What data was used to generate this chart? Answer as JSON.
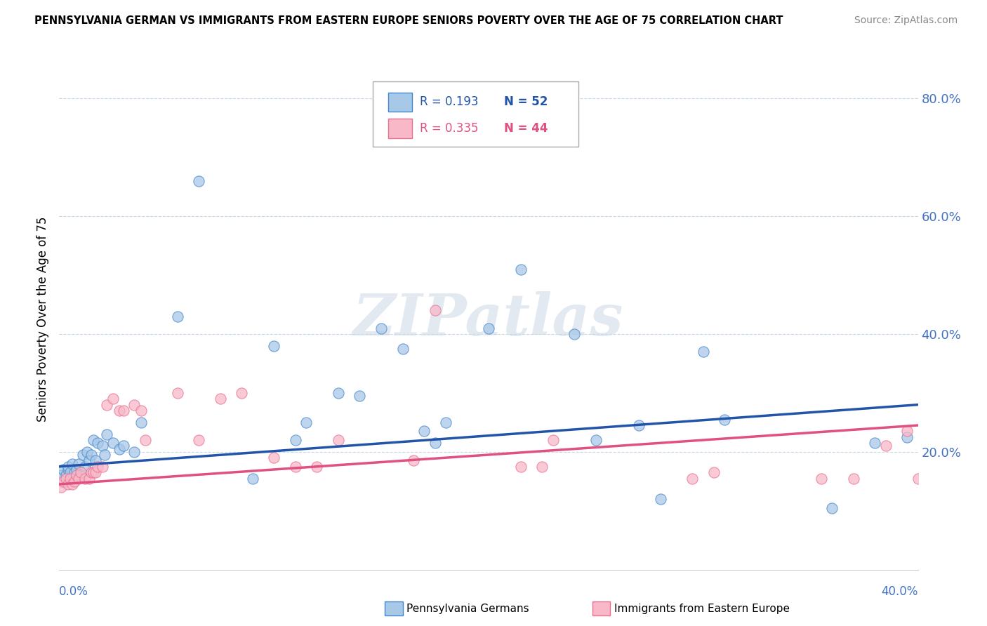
{
  "title": "PENNSYLVANIA GERMAN VS IMMIGRANTS FROM EASTERN EUROPE SENIORS POVERTY OVER THE AGE OF 75 CORRELATION CHART",
  "source": "Source: ZipAtlas.com",
  "xmin": 0.0,
  "xmax": 0.4,
  "ymin": 0.0,
  "ymax": 0.85,
  "legend_r1": "R = 0.193",
  "legend_n1": "N = 52",
  "legend_r2": "R = 0.335",
  "legend_n2": "N = 44",
  "color_blue_fill": "#a8c8e8",
  "color_blue_edge": "#4488cc",
  "color_blue_line": "#2255aa",
  "color_pink_fill": "#f8b8c8",
  "color_pink_edge": "#e87090",
  "color_pink_line": "#e05080",
  "color_ytick": "#4472c4",
  "watermark": "ZIPatlas",
  "blue_trend_start": 0.175,
  "blue_trend_end": 0.28,
  "pink_trend_start": 0.145,
  "pink_trend_end": 0.245,
  "blue_x": [
    0.001,
    0.002,
    0.003,
    0.004,
    0.004,
    0.005,
    0.006,
    0.006,
    0.007,
    0.008,
    0.009,
    0.01,
    0.011,
    0.012,
    0.013,
    0.014,
    0.015,
    0.016,
    0.017,
    0.018,
    0.02,
    0.021,
    0.022,
    0.025,
    0.028,
    0.03,
    0.035,
    0.038,
    0.055,
    0.065,
    0.09,
    0.1,
    0.11,
    0.115,
    0.13,
    0.14,
    0.15,
    0.16,
    0.17,
    0.175,
    0.18,
    0.2,
    0.215,
    0.24,
    0.25,
    0.27,
    0.28,
    0.3,
    0.31,
    0.36,
    0.38,
    0.395
  ],
  "blue_y": [
    0.16,
    0.17,
    0.16,
    0.17,
    0.175,
    0.165,
    0.18,
    0.155,
    0.165,
    0.17,
    0.18,
    0.16,
    0.195,
    0.175,
    0.2,
    0.185,
    0.195,
    0.22,
    0.185,
    0.215,
    0.21,
    0.195,
    0.23,
    0.215,
    0.205,
    0.21,
    0.2,
    0.25,
    0.43,
    0.66,
    0.155,
    0.38,
    0.22,
    0.25,
    0.3,
    0.295,
    0.41,
    0.375,
    0.235,
    0.215,
    0.25,
    0.41,
    0.51,
    0.4,
    0.22,
    0.245,
    0.12,
    0.37,
    0.255,
    0.105,
    0.215,
    0.225
  ],
  "pink_x": [
    0.001,
    0.002,
    0.003,
    0.004,
    0.005,
    0.006,
    0.007,
    0.008,
    0.009,
    0.01,
    0.012,
    0.014,
    0.015,
    0.016,
    0.017,
    0.018,
    0.02,
    0.022,
    0.025,
    0.028,
    0.03,
    0.035,
    0.038,
    0.04,
    0.055,
    0.065,
    0.075,
    0.085,
    0.1,
    0.11,
    0.12,
    0.13,
    0.165,
    0.175,
    0.215,
    0.225,
    0.23,
    0.295,
    0.305,
    0.355,
    0.37,
    0.385,
    0.395,
    0.4
  ],
  "pink_y": [
    0.14,
    0.15,
    0.155,
    0.145,
    0.155,
    0.145,
    0.15,
    0.16,
    0.155,
    0.165,
    0.155,
    0.155,
    0.165,
    0.165,
    0.165,
    0.175,
    0.175,
    0.28,
    0.29,
    0.27,
    0.27,
    0.28,
    0.27,
    0.22,
    0.3,
    0.22,
    0.29,
    0.3,
    0.19,
    0.175,
    0.175,
    0.22,
    0.185,
    0.44,
    0.175,
    0.175,
    0.22,
    0.155,
    0.165,
    0.155,
    0.155,
    0.21,
    0.235,
    0.155
  ]
}
